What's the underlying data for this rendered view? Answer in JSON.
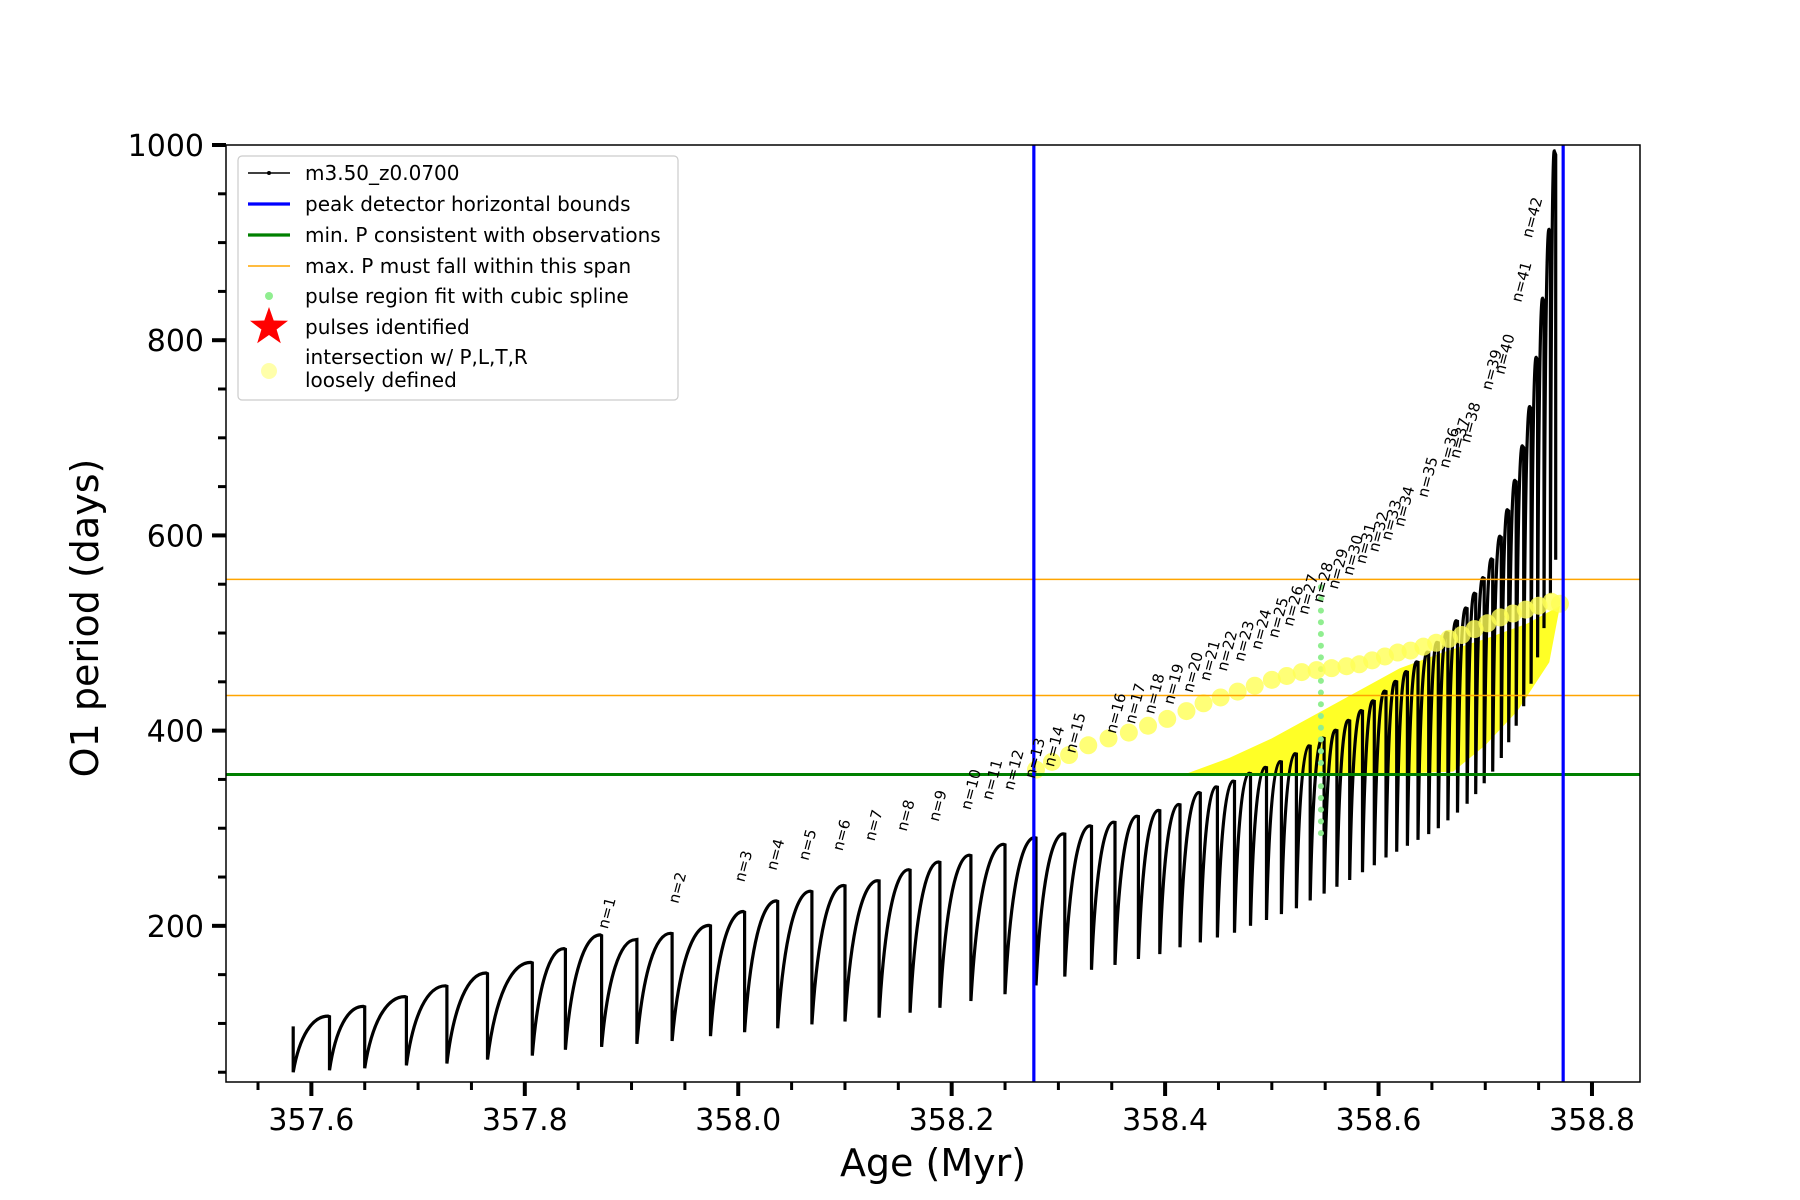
{
  "chart_data": {
    "type": "line",
    "xlabel": "Age (Myr)",
    "ylabel": "O1 period (days)",
    "xlim": [
      357.52,
      358.845
    ],
    "ylim": [
      40,
      1000
    ],
    "x_ticks": [
      "357.6",
      "357.8",
      "358.0",
      "358.2",
      "358.4",
      "358.6",
      "358.8"
    ],
    "y_ticks": [
      "200",
      "400",
      "600",
      "800",
      "1000"
    ],
    "x_tick_values": [
      357.6,
      357.8,
      358.0,
      358.2,
      358.4,
      358.6,
      358.8
    ],
    "y_tick_values": [
      200,
      400,
      600,
      800,
      1000
    ],
    "legend_position": "top-left",
    "legend": [
      {
        "label": "m3.50_z0.0700",
        "style": "line-dots",
        "color": "#000000"
      },
      {
        "label": "peak detector horizontal bounds",
        "style": "line",
        "color": "#0000ff"
      },
      {
        "label": "min. P consistent with observations",
        "style": "line",
        "color": "#008000"
      },
      {
        "label": "max. P must fall within this span",
        "style": "thin-line",
        "color": "#ffa500"
      },
      {
        "label": "pulse region fit with cubic spline",
        "style": "dot",
        "color": "#90ee90"
      },
      {
        "label": "pulses identified",
        "style": "star",
        "color": "#ff0000"
      },
      {
        "label": "intersection w/ P,L,T,R\nloosely defined",
        "style": "circle",
        "color": "#ffffaa"
      }
    ],
    "vertical_lines": {
      "color": "#0000ff",
      "x": [
        358.277,
        358.773
      ]
    },
    "green_line": {
      "color": "#008000",
      "y": 355
    },
    "orange_lines": {
      "color": "#ffa500",
      "y": [
        555,
        436
      ]
    },
    "series_name": "m3.50_z0.0700",
    "series_color": "#000000",
    "pulses": [
      {
        "x": 357.583,
        "min": 50,
        "max": 97
      },
      {
        "x": 357.617,
        "min": 52,
        "max": 107
      },
      {
        "x": 357.65,
        "min": 54,
        "max": 117
      },
      {
        "x": 357.689,
        "min": 57,
        "max": 127
      },
      {
        "x": 357.727,
        "min": 59,
        "max": 138
      },
      {
        "x": 357.765,
        "min": 63,
        "max": 151
      },
      {
        "x": 357.807,
        "min": 67,
        "max": 162
      },
      {
        "x": 357.838,
        "min": 73,
        "max": 176
      },
      {
        "x": 357.872,
        "min": 76,
        "max": 190
      },
      {
        "x": 357.905,
        "min": 79,
        "max": 186
      },
      {
        "x": 357.938,
        "min": 82,
        "max": 192
      },
      {
        "x": 357.974,
        "min": 87,
        "max": 200
      },
      {
        "x": 358.006,
        "min": 91,
        "max": 214
      },
      {
        "x": 358.037,
        "min": 95,
        "max": 225
      },
      {
        "x": 358.069,
        "min": 99,
        "max": 235
      },
      {
        "x": 358.1,
        "min": 102,
        "max": 241
      },
      {
        "x": 358.132,
        "min": 106,
        "max": 246
      },
      {
        "x": 358.161,
        "min": 111,
        "max": 257
      },
      {
        "x": 358.189,
        "min": 116,
        "max": 265
      },
      {
        "x": 358.218,
        "min": 123,
        "max": 272
      },
      {
        "x": 358.25,
        "min": 130,
        "max": 283
      },
      {
        "x": 358.279,
        "min": 139,
        "max": 290
      },
      {
        "x": 358.306,
        "min": 148,
        "max": 294
      },
      {
        "x": 358.331,
        "min": 155,
        "max": 302
      },
      {
        "x": 358.353,
        "min": 160,
        "max": 306
      },
      {
        "x": 358.375,
        "min": 166,
        "max": 312
      },
      {
        "x": 358.395,
        "min": 171,
        "max": 318
      },
      {
        "x": 358.414,
        "min": 178,
        "max": 324
      },
      {
        "x": 358.433,
        "min": 183,
        "max": 336
      },
      {
        "x": 358.449,
        "min": 188,
        "max": 342
      },
      {
        "x": 358.465,
        "min": 193,
        "max": 348
      },
      {
        "x": 358.48,
        "min": 200,
        "max": 356
      },
      {
        "x": 358.495,
        "min": 206,
        "max": 362
      },
      {
        "x": 358.509,
        "min": 212,
        "max": 368
      },
      {
        "x": 358.523,
        "min": 218,
        "max": 376
      },
      {
        "x": 358.536,
        "min": 226,
        "max": 384
      },
      {
        "x": 358.549,
        "min": 233,
        "max": 392
      },
      {
        "x": 358.561,
        "min": 240,
        "max": 400
      },
      {
        "x": 358.573,
        "min": 247,
        "max": 410
      },
      {
        "x": 358.585,
        "min": 255,
        "max": 420
      },
      {
        "x": 358.596,
        "min": 262,
        "max": 430
      },
      {
        "x": 358.607,
        "min": 270,
        "max": 440
      },
      {
        "x": 358.617,
        "min": 276,
        "max": 450
      },
      {
        "x": 358.627,
        "min": 282,
        "max": 460
      },
      {
        "x": 358.637,
        "min": 288,
        "max": 470
      },
      {
        "x": 358.647,
        "min": 294,
        "max": 480
      },
      {
        "x": 358.656,
        "min": 300,
        "max": 490
      },
      {
        "x": 358.665,
        "min": 308,
        "max": 500
      },
      {
        "x": 358.674,
        "min": 316,
        "max": 512
      },
      {
        "x": 358.683,
        "min": 325,
        "max": 525
      },
      {
        "x": 358.691,
        "min": 335,
        "max": 540
      },
      {
        "x": 358.699,
        "min": 346,
        "max": 556
      },
      {
        "x": 358.707,
        "min": 358,
        "max": 575
      },
      {
        "x": 358.715,
        "min": 372,
        "max": 598
      },
      {
        "x": 358.722,
        "min": 388,
        "max": 625
      },
      {
        "x": 358.729,
        "min": 405,
        "max": 655
      },
      {
        "x": 358.736,
        "min": 425,
        "max": 690
      },
      {
        "x": 358.743,
        "min": 448,
        "max": 730
      },
      {
        "x": 358.749,
        "min": 475,
        "max": 780
      },
      {
        "x": 358.755,
        "min": 505,
        "max": 840
      },
      {
        "x": 358.761,
        "min": 540,
        "max": 910
      },
      {
        "x": 358.766,
        "min": 575,
        "max": 990
      }
    ],
    "pulse_labels": [
      {
        "text": "n=1",
        "x": 357.872,
        "y": 192
      },
      {
        "text": "n=2",
        "x": 357.938,
        "y": 218
      },
      {
        "text": "n=3",
        "x": 358.0,
        "y": 240
      },
      {
        "text": "n=4",
        "x": 358.03,
        "y": 252
      },
      {
        "text": "n=5",
        "x": 358.06,
        "y": 262
      },
      {
        "text": "n=6",
        "x": 358.092,
        "y": 272
      },
      {
        "text": "n=7",
        "x": 358.122,
        "y": 282
      },
      {
        "text": "n=8",
        "x": 358.152,
        "y": 292
      },
      {
        "text": "n=9",
        "x": 358.182,
        "y": 302
      },
      {
        "text": "n=10",
        "x": 358.212,
        "y": 314
      },
      {
        "text": "n=11",
        "x": 358.232,
        "y": 324
      },
      {
        "text": "n=12",
        "x": 358.252,
        "y": 334
      },
      {
        "text": "n=13",
        "x": 358.272,
        "y": 346
      },
      {
        "text": "n=14",
        "x": 358.29,
        "y": 358
      },
      {
        "text": "n=15",
        "x": 358.31,
        "y": 372
      },
      {
        "text": "n=16",
        "x": 358.348,
        "y": 392
      },
      {
        "text": "n=17",
        "x": 358.366,
        "y": 402
      },
      {
        "text": "n=18",
        "x": 358.384,
        "y": 412
      },
      {
        "text": "n=19",
        "x": 358.402,
        "y": 422
      },
      {
        "text": "n=20",
        "x": 358.42,
        "y": 434
      },
      {
        "text": "n=21",
        "x": 358.436,
        "y": 446
      },
      {
        "text": "n=22",
        "x": 358.452,
        "y": 456
      },
      {
        "text": "n=23",
        "x": 358.468,
        "y": 466
      },
      {
        "text": "n=24",
        "x": 358.484,
        "y": 478
      },
      {
        "text": "n=25",
        "x": 358.5,
        "y": 490
      },
      {
        "text": "n=26",
        "x": 358.514,
        "y": 502
      },
      {
        "text": "n=27",
        "x": 358.528,
        "y": 514
      },
      {
        "text": "n=28",
        "x": 358.542,
        "y": 526
      },
      {
        "text": "n=29",
        "x": 358.556,
        "y": 540
      },
      {
        "text": "n=30",
        "x": 358.57,
        "y": 554
      },
      {
        "text": "n=31",
        "x": 358.582,
        "y": 566
      },
      {
        "text": "n=32",
        "x": 358.594,
        "y": 578
      },
      {
        "text": "n=33",
        "x": 358.606,
        "y": 590
      },
      {
        "text": "n=34",
        "x": 358.618,
        "y": 604
      },
      {
        "text": "n=35",
        "x": 358.64,
        "y": 634
      },
      {
        "text": "n=36",
        "x": 358.66,
        "y": 664
      },
      {
        "text": "n=37",
        "x": 358.67,
        "y": 674
      },
      {
        "text": "n=38",
        "x": 358.68,
        "y": 690
      },
      {
        "text": "n=39",
        "x": 358.7,
        "y": 744
      },
      {
        "text": "n=40",
        "x": 358.712,
        "y": 760
      },
      {
        "text": "n=41",
        "x": 358.728,
        "y": 834
      },
      {
        "text": "n=42",
        "x": 358.738,
        "y": 900
      }
    ],
    "yellow_circles": [
      [
        358.279,
        360
      ],
      [
        358.294,
        368
      ],
      [
        358.31,
        375
      ],
      [
        358.328,
        385
      ],
      [
        358.347,
        392
      ],
      [
        358.366,
        398
      ],
      [
        358.384,
        405
      ],
      [
        358.402,
        412
      ],
      [
        358.42,
        420
      ],
      [
        358.436,
        428
      ],
      [
        358.452,
        434
      ],
      [
        358.468,
        440
      ],
      [
        358.484,
        446
      ],
      [
        358.5,
        452
      ],
      [
        358.514,
        456
      ],
      [
        358.528,
        460
      ],
      [
        358.542,
        462
      ],
      [
        358.556,
        464
      ],
      [
        358.57,
        466
      ],
      [
        358.582,
        468
      ],
      [
        358.594,
        472
      ],
      [
        358.606,
        476
      ],
      [
        358.618,
        480
      ],
      [
        358.63,
        482
      ],
      [
        358.642,
        486
      ],
      [
        358.654,
        490
      ],
      [
        358.666,
        494
      ],
      [
        358.678,
        498
      ],
      [
        358.69,
        504
      ],
      [
        358.702,
        510
      ],
      [
        358.714,
        516
      ],
      [
        358.726,
        520
      ],
      [
        358.738,
        524
      ],
      [
        358.75,
        528
      ],
      [
        358.762,
        532
      ],
      [
        358.77,
        530
      ]
    ],
    "yellow_region": [
      [
        358.42,
        356
      ],
      [
        358.46,
        372
      ],
      [
        358.5,
        392
      ],
      [
        358.54,
        416
      ],
      [
        358.58,
        440
      ],
      [
        358.62,
        464
      ],
      [
        358.66,
        480
      ],
      [
        358.7,
        494
      ],
      [
        358.74,
        510
      ],
      [
        358.77,
        528
      ],
      [
        358.76,
        470
      ],
      [
        358.73,
        420
      ],
      [
        358.7,
        385
      ],
      [
        358.67,
        358
      ],
      [
        358.6,
        355
      ],
      [
        358.5,
        355
      ],
      [
        358.44,
        355
      ]
    ],
    "green_dots": [
      {
        "x": 358.546,
        "y_range": [
          295,
          555
        ]
      }
    ]
  }
}
